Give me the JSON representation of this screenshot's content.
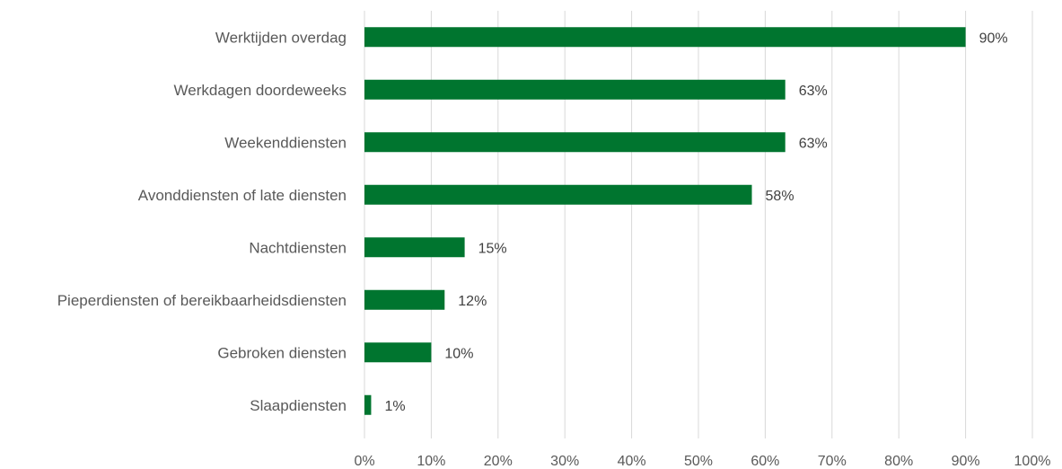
{
  "chart_data": {
    "type": "bar",
    "orientation": "horizontal",
    "categories": [
      "Werktijden overdag",
      "Werkdagen doordeweeks",
      "Weekenddiensten",
      "Avonddiensten of late diensten",
      "Nachtdiensten",
      "Pieperdiensten of bereikbaarheidsdiensten",
      "Gebroken diensten",
      "Slaapdiensten"
    ],
    "values": [
      90,
      63,
      63,
      58,
      15,
      12,
      10,
      1
    ],
    "value_labels": [
      "90%",
      "63%",
      "63%",
      "58%",
      "15%",
      "12%",
      "10%",
      "1%"
    ],
    "xlim": [
      0,
      100
    ],
    "x_ticks": [
      "0%",
      "10%",
      "20%",
      "30%",
      "40%",
      "50%",
      "60%",
      "70%",
      "80%",
      "90%",
      "100%"
    ],
    "grid": "vertical",
    "bar_color": "#00752f",
    "title": "",
    "xlabel": "",
    "ylabel": ""
  }
}
